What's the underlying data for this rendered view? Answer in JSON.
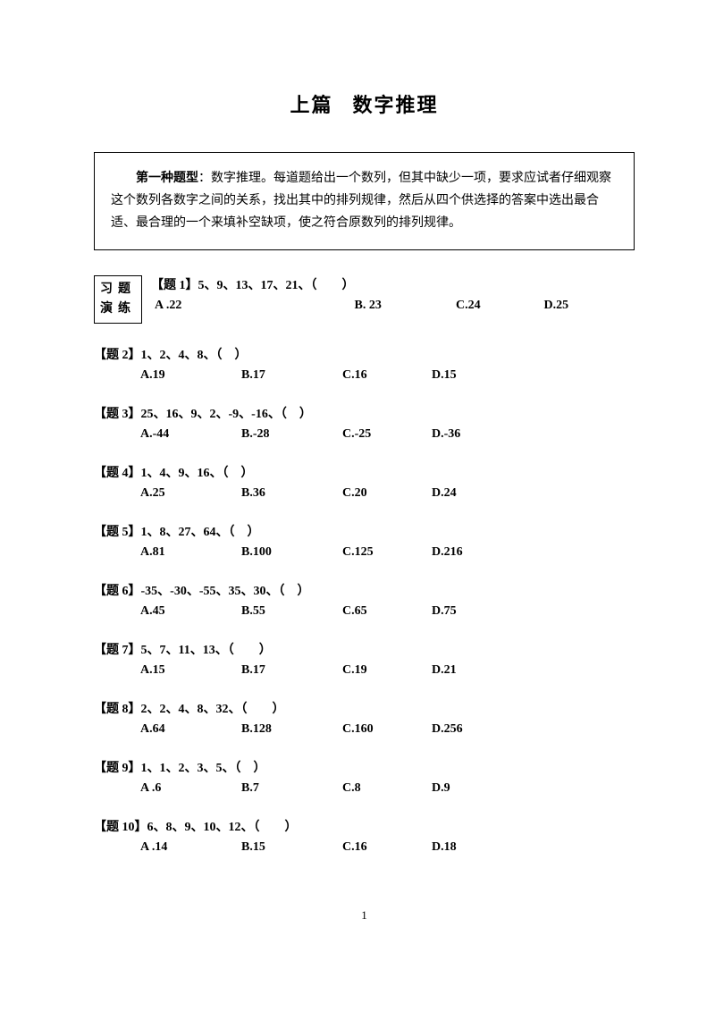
{
  "title_part1": "上篇",
  "title_part2": "数字推理",
  "intro_lead": "第一种题型",
  "intro_body": "：数字推理。每道题给出一个数列，但其中缺少一项，要求应试者仔细观察这个数列各数字之间的关系，找出其中的排列规律，然后从四个供选择的答案中选出最合适、最合理的一个来填补空缺项，使之符合原数列的排列规律。",
  "practice_line1": "习题",
  "practice_line2": "演练",
  "q1": {
    "stem": "【题 1】5、9、13、17、21、（　　）",
    "a": "A .22",
    "b": "B. 23",
    "c": "C.24",
    "d": "D.25"
  },
  "questions": [
    {
      "stem": "【题 2】1、2、4、8、（　）",
      "a": "A.19",
      "b": "B.17",
      "c": "C.16",
      "d": "D.15"
    },
    {
      "stem": "【题 3】25、16、9、2、-9、-16、（　）",
      "a": "A.-44",
      "b": "B.-28",
      "c": "C.-25",
      "d": "D.-36"
    },
    {
      "stem": "【题 4】1、4、9、16、（　）",
      "a": "A.25",
      "b": "B.36",
      "c": "C.20",
      "d": "D.24"
    },
    {
      "stem": "【题 5】1、8、27、64、（　）",
      "a": "A.81",
      "b": "B.100",
      "c": "C.125",
      "d": "D.216"
    },
    {
      "stem": "【题 6】-35、-30、-55、35、30、（　）",
      "a": "A.45",
      "b": "B.55",
      "c": "C.65",
      "d": "D.75"
    },
    {
      "stem": "【题 7】5、7、11、13、（　　）",
      "a": "A.15",
      "b": "B.17",
      "c": "C.19",
      "d": "D.21"
    },
    {
      "stem": "【题 8】2、2、4、8、32、（　　）",
      "a": "A.64",
      "b": "B.128",
      "c": "C.160",
      "d": "D.256"
    },
    {
      "stem": "【题 9】1、1、2、3、5、（　）",
      "a": "A .6",
      "b": "B.7",
      "c": "C.8",
      "d": "D.9"
    },
    {
      "stem": "【题 10】6、8、9、10、12、（　　）",
      "a": "A .14",
      "b": "B.15",
      "c": "C.16",
      "d": "D.18"
    }
  ],
  "page_number": "1"
}
